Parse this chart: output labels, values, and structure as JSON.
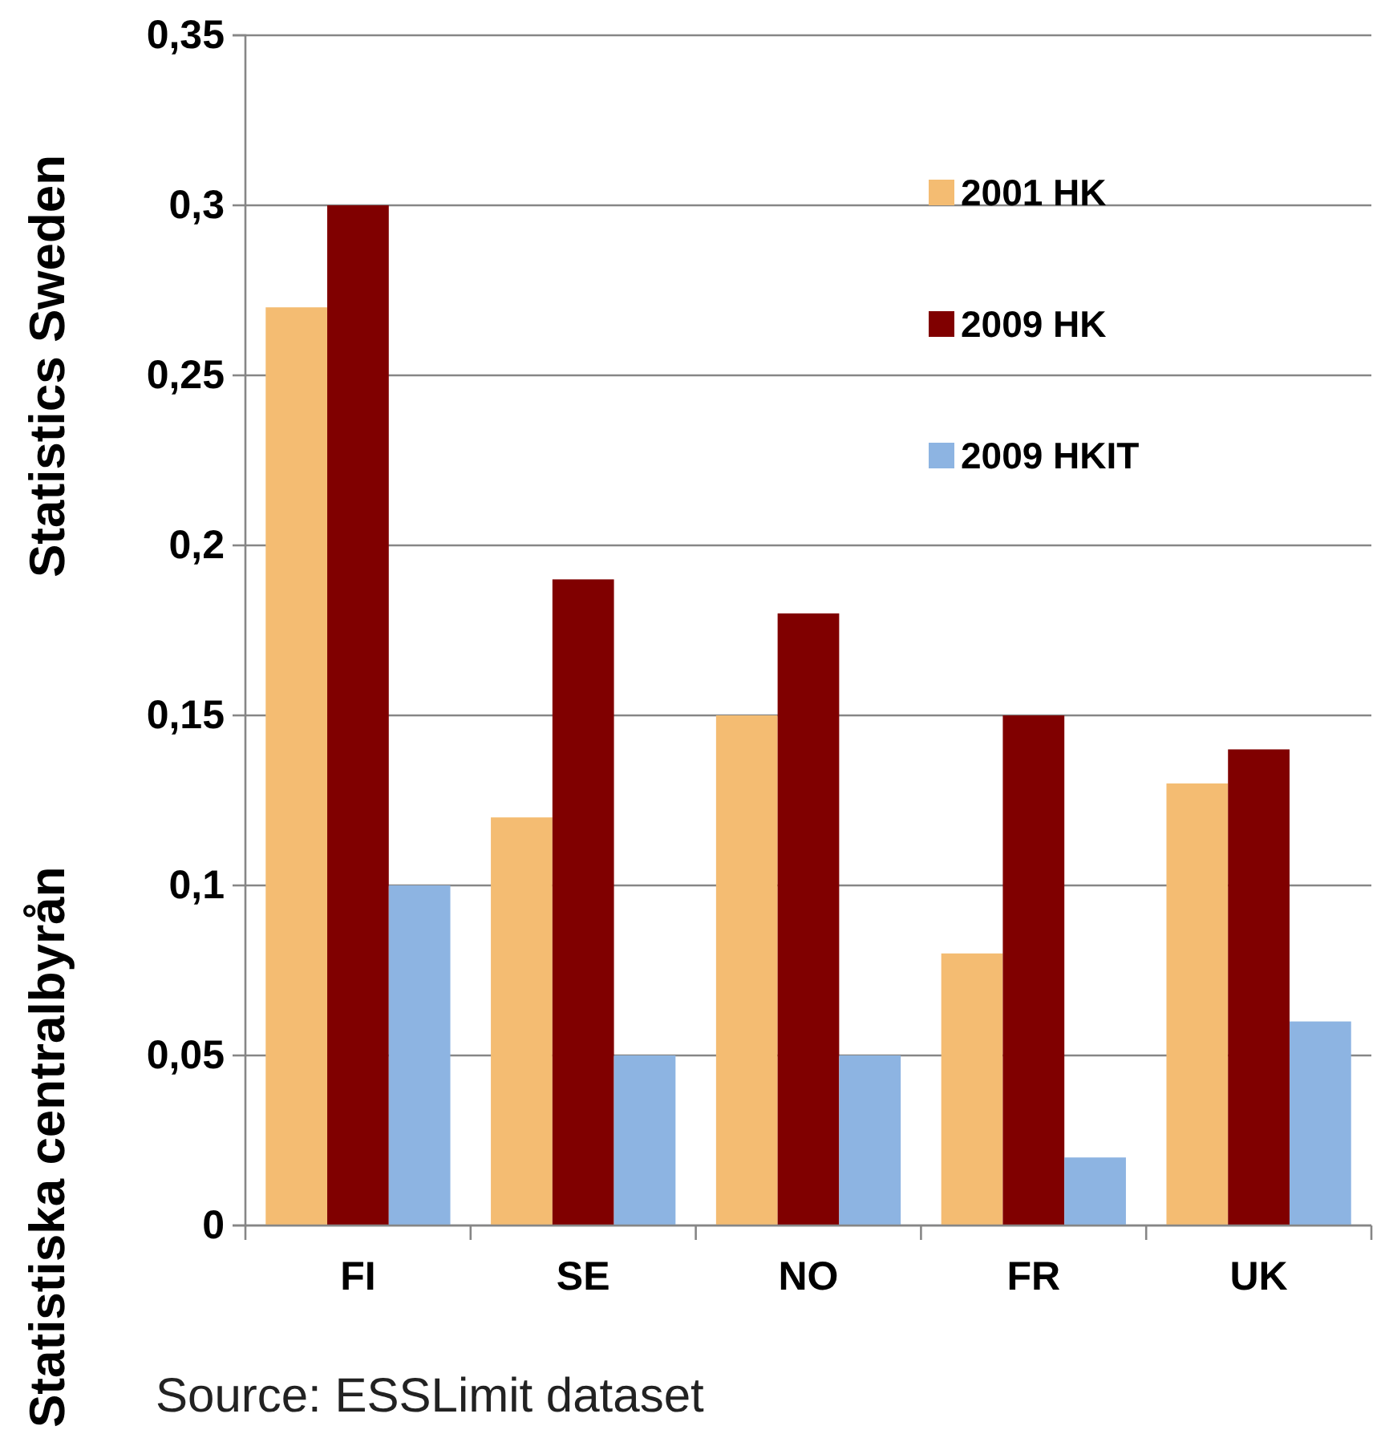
{
  "chart_data": {
    "type": "bar",
    "categories": [
      "FI",
      "SE",
      "NO",
      "FR",
      "UK"
    ],
    "series": [
      {
        "name": "2001 HK",
        "color": "#f4bc72",
        "values": [
          0.27,
          0.12,
          0.15,
          0.08,
          0.13
        ]
      },
      {
        "name": "2009 HK",
        "color": "#800000",
        "values": [
          0.3,
          0.19,
          0.18,
          0.15,
          0.14
        ]
      },
      {
        "name": "2009 HKIT",
        "color": "#8db4e2",
        "values": [
          0.1,
          0.05,
          0.05,
          0.02,
          0.06
        ]
      }
    ],
    "ylim": [
      0,
      0.35
    ],
    "yticks": [
      0,
      {
        "value": 0.05,
        "label": "0,05"
      },
      {
        "value": 0.1,
        "label": "0,1"
      },
      {
        "value": 0.15,
        "label": "0,15"
      },
      {
        "value": 0.2,
        "label": "0,2"
      },
      {
        "value": 0.25,
        "label": "0,25"
      },
      {
        "value": 0.3,
        "label": "0,3"
      },
      {
        "value": 0.35,
        "label": "0,35"
      }
    ],
    "grid": "y",
    "legend": "top right",
    "annotations": [
      "Statistiska centralbyrån",
      "Statistics Sweden",
      "Source: ESSLimit dataset"
    ]
  }
}
